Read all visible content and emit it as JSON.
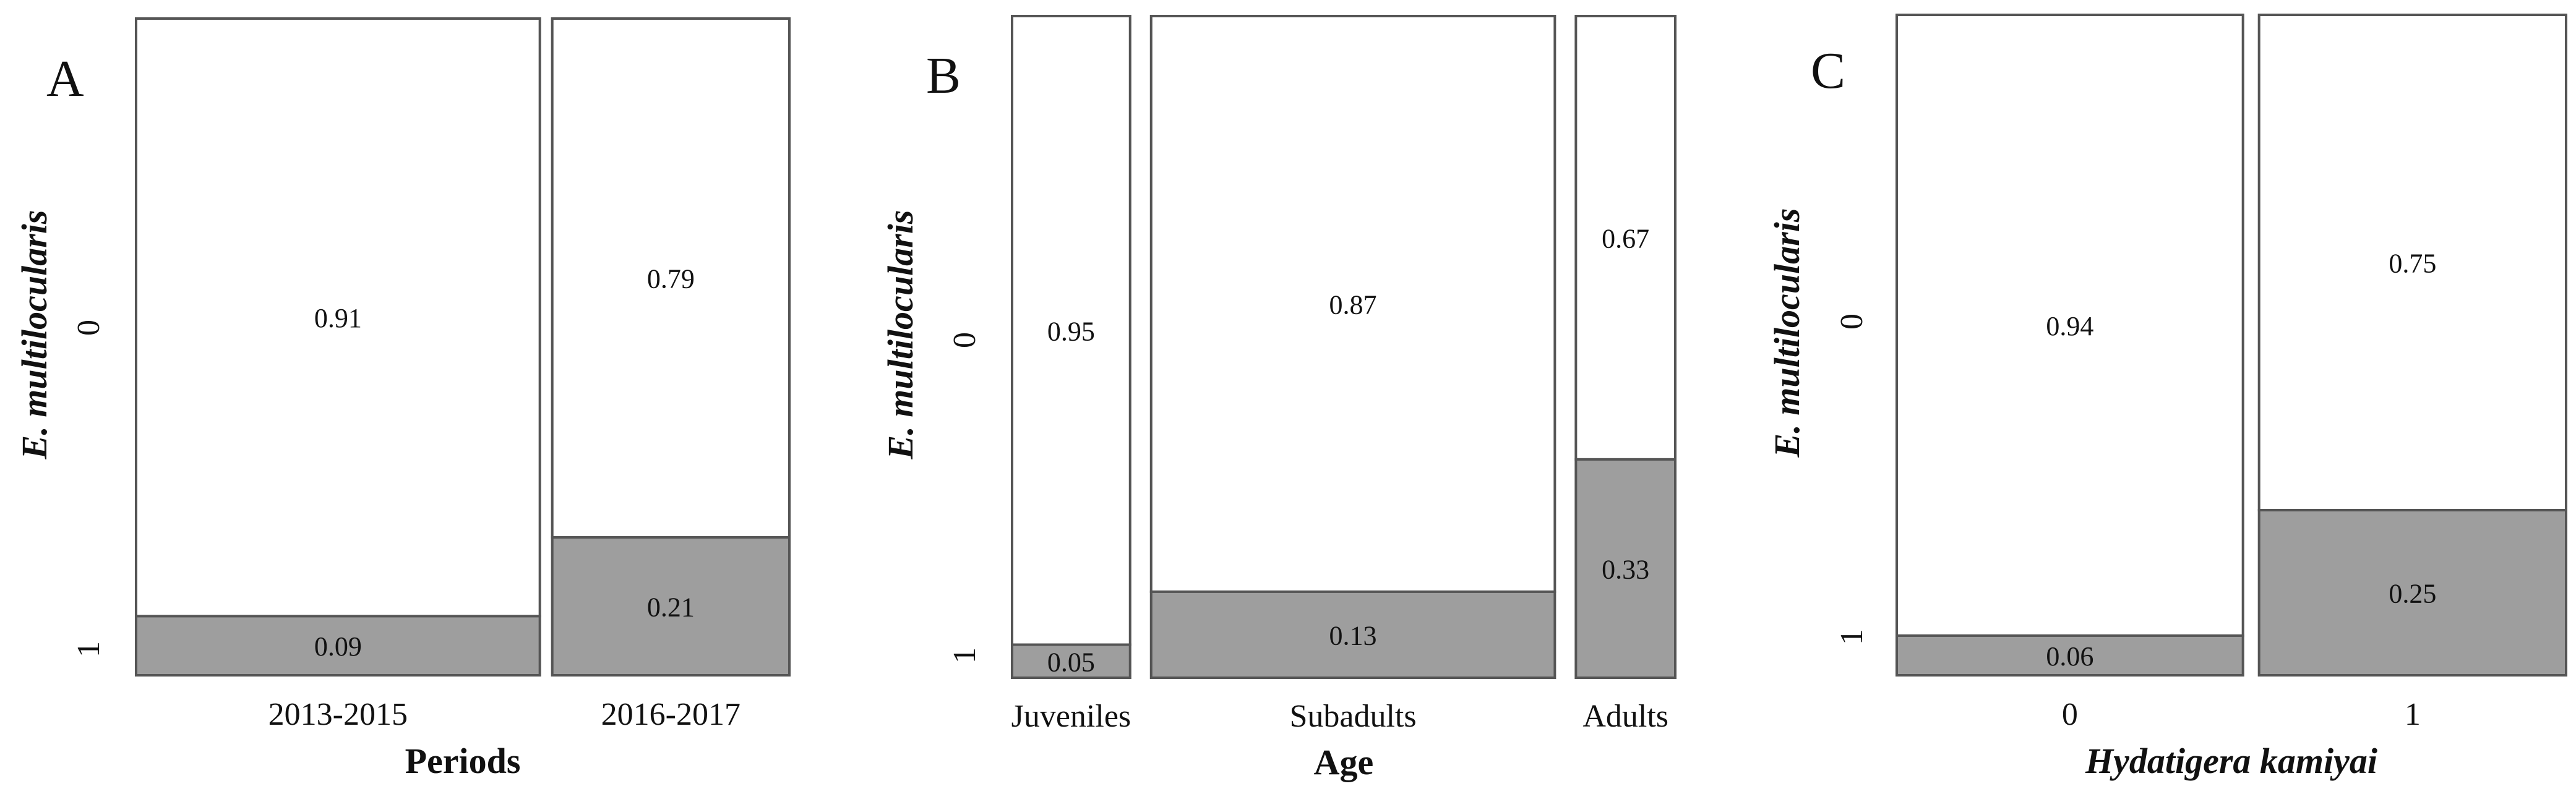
{
  "chart_data": [
    {
      "type": "mosaic",
      "panel": "A",
      "ylabel": "E. multilocularis",
      "xlabel": "Periods",
      "xlabel_italic": false,
      "y_categories": [
        "0",
        "1"
      ],
      "columns": [
        {
          "label": "2013-2015",
          "width_share": 0.63,
          "top_value": 0.91,
          "bottom_value": 0.09,
          "top_label": "0.91",
          "bottom_label": "0.09"
        },
        {
          "label": "2016-2017",
          "width_share": 0.37,
          "top_value": 0.79,
          "bottom_value": 0.21,
          "top_label": "0.79",
          "bottom_label": "0.21"
        }
      ]
    },
    {
      "type": "mosaic",
      "panel": "B",
      "ylabel": "E. multilocularis",
      "xlabel": "Age",
      "xlabel_italic": false,
      "y_categories": [
        "0",
        "1"
      ],
      "columns": [
        {
          "label": "Juveniles",
          "width_share": 0.19,
          "top_value": 0.95,
          "bottom_value": 0.05,
          "top_label": "0.95",
          "bottom_label": "0.05"
        },
        {
          "label": "Subadults",
          "width_share": 0.65,
          "top_value": 0.87,
          "bottom_value": 0.13,
          "top_label": "0.87",
          "bottom_label": "0.13"
        },
        {
          "label": "Adults",
          "width_share": 0.16,
          "top_value": 0.67,
          "bottom_value": 0.33,
          "top_label": "0.67",
          "bottom_label": "0.33"
        }
      ]
    },
    {
      "type": "mosaic",
      "panel": "C",
      "ylabel": "E. multilocularis",
      "xlabel": "Hydatigera kamiyai",
      "xlabel_italic": true,
      "y_categories": [
        "0",
        "1"
      ],
      "columns": [
        {
          "label": "0",
          "width_share": 0.53,
          "top_value": 0.94,
          "bottom_value": 0.06,
          "top_label": "0.94",
          "bottom_label": "0.06"
        },
        {
          "label": "1",
          "width_share": 0.47,
          "top_value": 0.75,
          "bottom_value": 0.25,
          "top_label": "0.75",
          "bottom_label": "0.25"
        }
      ]
    }
  ],
  "colors": {
    "positive_fill": "#9e9e9e",
    "negative_fill": "#ffffff",
    "border": "#555555"
  }
}
